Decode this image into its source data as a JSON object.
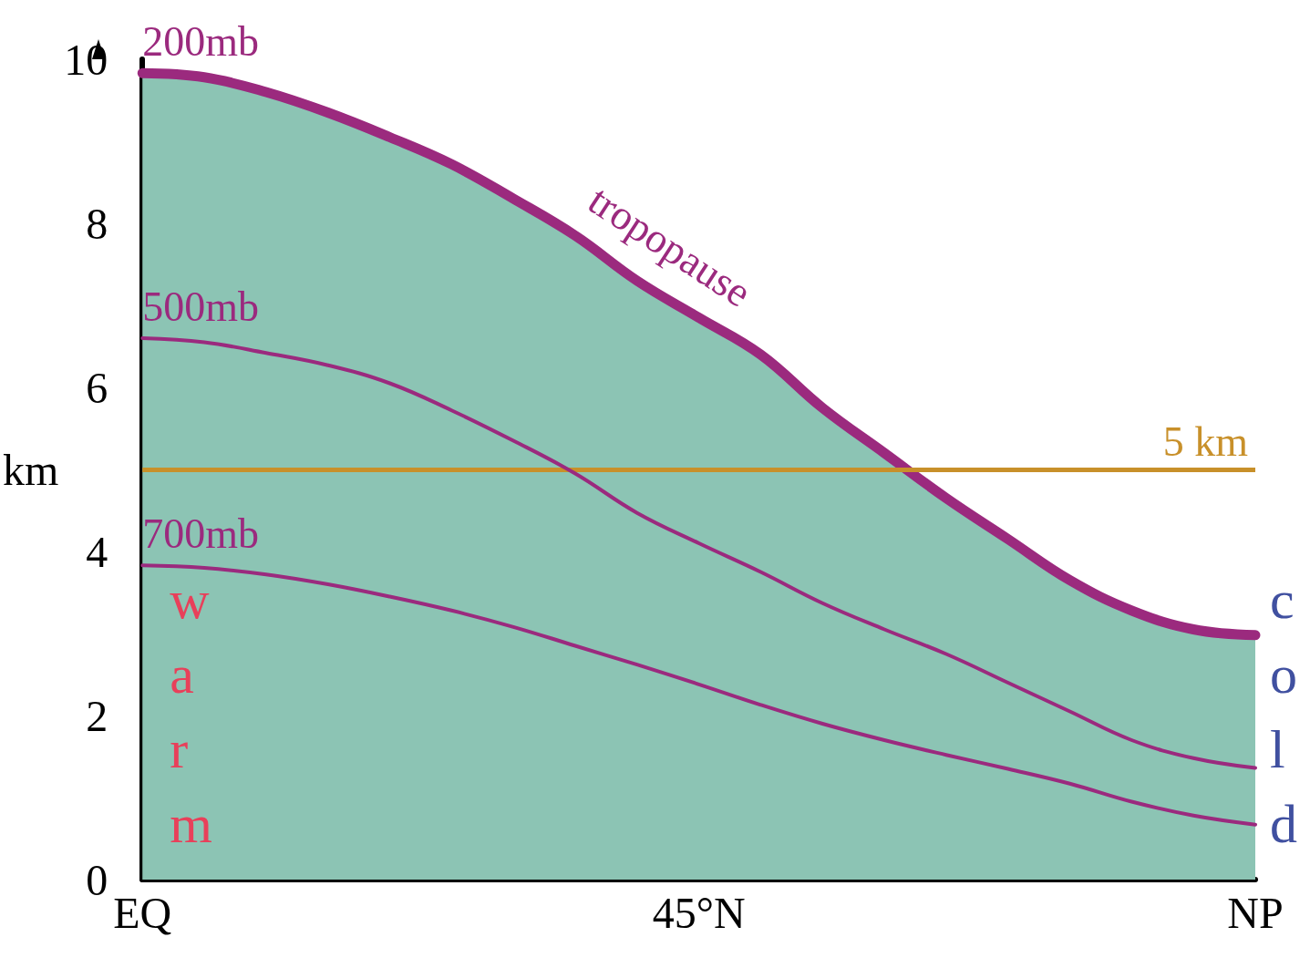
{
  "chart_data": {
    "type": "line",
    "ylabel": "km",
    "categories": [
      "EQ",
      null,
      null,
      null,
      null,
      null,
      null,
      null,
      null,
      "45°N",
      null,
      null,
      null,
      null,
      null,
      null,
      null,
      null,
      "NP"
    ],
    "series": [
      {
        "type": "area",
        "color": "#8cc4b4",
        "values": [
          9.83,
          9.78,
          9.6,
          9.35,
          9.05,
          8.72,
          8.3,
          7.85,
          7.3,
          6.85,
          6.4,
          5.75,
          5.2,
          4.65,
          4.15,
          3.65,
          3.28,
          3.05,
          2.98
        ]
      },
      {
        "name": "200mb",
        "type": "line",
        "color": "#9b2a7e",
        "values": [
          9.83,
          9.78,
          9.6,
          9.35,
          9.05,
          8.72,
          8.3,
          7.85,
          7.3,
          6.85,
          6.4,
          5.75,
          5.2,
          4.65,
          4.15,
          3.65,
          3.28,
          3.05,
          2.98
        ]
      },
      {
        "name": "500mb",
        "color": "#9b2a7e",
        "values": [
          6.6,
          6.55,
          6.42,
          6.27,
          6.05,
          5.72,
          5.35,
          4.95,
          4.47,
          4.1,
          3.75,
          3.37,
          3.05,
          2.75,
          2.4,
          2.05,
          1.7,
          1.48,
          1.36
        ]
      },
      {
        "name": "700mb",
        "color": "#9b2a7e",
        "values": [
          3.83,
          3.8,
          3.72,
          3.6,
          3.45,
          3.28,
          3.08,
          2.85,
          2.62,
          2.38,
          2.13,
          1.9,
          1.7,
          1.52,
          1.35,
          1.17,
          0.95,
          0.78,
          0.67
        ]
      }
    ],
    "ylim": [
      0,
      10
    ],
    "yticks": [
      0,
      2,
      4,
      6,
      8,
      10
    ],
    "ref_lines": [
      {
        "axis": "y",
        "value": 5,
        "label": "5 km",
        "color": "#c8902a"
      }
    ],
    "annotations": [
      "tropopause",
      "warm",
      "cold"
    ],
    "grid": false,
    "legend": false,
    "marker": "none"
  }
}
